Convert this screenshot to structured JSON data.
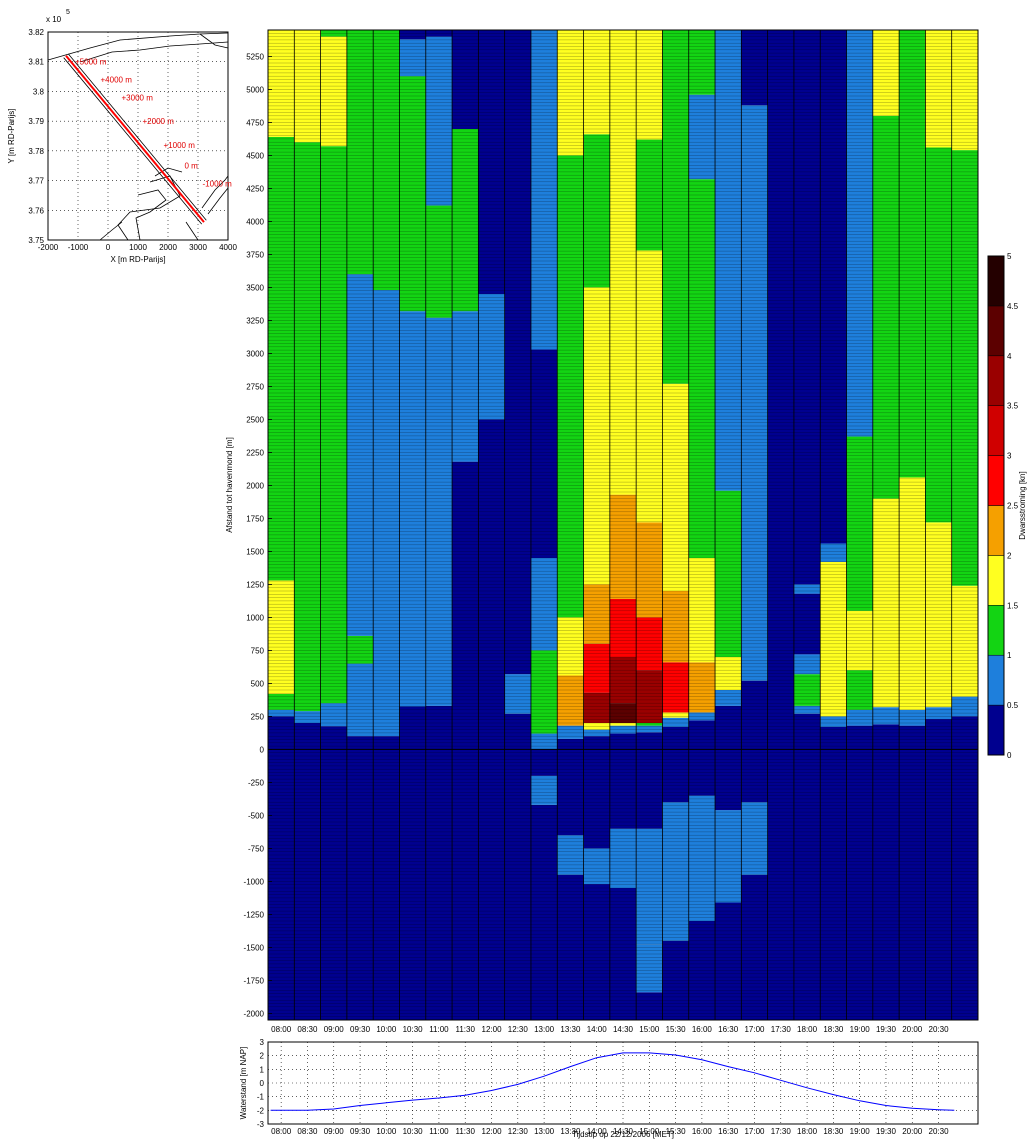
{
  "chart_data": [
    {
      "type": "line",
      "name": "location-map",
      "xlabel": "X [m RD-Parijs]",
      "ylabel": "Y [m RD-Parijs]",
      "y_exponent_label": "x 10",
      "y_exponent_power": "5",
      "xlim": [
        -2000,
        4000
      ],
      "ylim": [
        3.75,
        3.82
      ],
      "xticks": [
        "-2000",
        "-1000",
        "0",
        "1000",
        "2000",
        "3000",
        "4000"
      ],
      "yticks": [
        "3.75",
        "3.76",
        "3.77",
        "3.78",
        "3.79",
        "3.8",
        "3.81",
        "3.82"
      ],
      "grid": true,
      "axis_line": {
        "x": [
          -1400,
          3200
        ],
        "y": [
          3.812,
          3.756
        ]
      },
      "distance_labels": [
        {
          "text": "+5000 m",
          "x": -1100,
          "y": 3.809
        },
        {
          "text": "+4000 m",
          "x": -250,
          "y": 3.803
        },
        {
          "text": "+3000 m",
          "x": 450,
          "y": 3.797
        },
        {
          "text": "+2000 m",
          "x": 1150,
          "y": 3.789
        },
        {
          "text": "+1000 m",
          "x": 1850,
          "y": 3.781
        },
        {
          "text": "0 m",
          "x": 2550,
          "y": 3.774
        },
        {
          "text": "-1000 m",
          "x": 3150,
          "y": 3.768
        }
      ]
    },
    {
      "type": "heatmap",
      "name": "dwarsstroming",
      "ylabel": "Afstand tot havenmond [m]",
      "colorbar_label": "Dwarsstroming [kn]",
      "x": [
        "08:00",
        "08:30",
        "09:00",
        "09:30",
        "10:00",
        "10:30",
        "11:00",
        "11:30",
        "12:00",
        "12:30",
        "13:00",
        "13:30",
        "14:00",
        "14:30",
        "15:00",
        "15:30",
        "16:00",
        "16:30",
        "17:00",
        "17:30",
        "18:00",
        "18:30",
        "19:00",
        "19:30",
        "20:00",
        "20:30"
      ],
      "ylim": [
        -2050,
        5450
      ],
      "yticks": [
        "-2000",
        "-1750",
        "-1500",
        "-1250",
        "-1000",
        "-750",
        "-500",
        "-250",
        "0",
        "250",
        "500",
        "750",
        "1000",
        "1250",
        "1500",
        "1750",
        "2000",
        "2250",
        "2500",
        "2750",
        "3000",
        "3250",
        "3500",
        "3750",
        "4000",
        "4250",
        "4500",
        "4750",
        "5000",
        "5250"
      ],
      "bins": [
        0,
        0.5,
        1,
        1.5,
        2,
        2.5,
        3,
        3.5,
        4,
        4.5,
        5
      ],
      "colors": [
        "#00008f",
        "#1e7fdc",
        "#13d413",
        "#ffff20",
        "#f5a000",
        "#ff0000",
        "#d00000",
        "#9a0000",
        "#5c0000",
        "#240000"
      ],
      "colorbar_ticks": [
        "0",
        "0.5",
        "1",
        "1.5",
        "2",
        "2.5",
        "3",
        "3.5",
        "4",
        "4.5",
        "5"
      ],
      "segments": [
        [
          [
            -2050,
            250,
            0
          ],
          [
            250,
            300,
            1
          ],
          [
            300,
            420,
            2
          ],
          [
            420,
            1280,
            3
          ],
          [
            1280,
            4640,
            2
          ],
          [
            4640,
            5450,
            3
          ]
        ],
        [
          [
            -2050,
            200,
            0
          ],
          [
            200,
            290,
            1
          ],
          [
            290,
            1200,
            2
          ],
          [
            1200,
            4600,
            2
          ],
          [
            4600,
            5450,
            3
          ]
        ],
        [
          [
            -2050,
            175,
            0
          ],
          [
            175,
            350,
            1
          ],
          [
            350,
            1560,
            2
          ],
          [
            1560,
            4570,
            2
          ],
          [
            4570,
            5400,
            3
          ],
          [
            5400,
            5450,
            2
          ]
        ],
        [
          [
            -2050,
            100,
            0
          ],
          [
            100,
            650,
            1
          ],
          [
            650,
            860,
            2
          ],
          [
            860,
            3600,
            1
          ],
          [
            3600,
            5450,
            2
          ]
        ],
        [
          [
            -2050,
            100,
            0
          ],
          [
            100,
            3480,
            1
          ],
          [
            3480,
            5450,
            2
          ]
        ],
        [
          [
            -2050,
            325,
            0
          ],
          [
            325,
            3320,
            1
          ],
          [
            3320,
            5100,
            2
          ],
          [
            5100,
            5380,
            1
          ],
          [
            5380,
            5450,
            0
          ]
        ],
        [
          [
            -2050,
            330,
            0
          ],
          [
            330,
            3270,
            1
          ],
          [
            3270,
            4120,
            2
          ],
          [
            4120,
            5400,
            1
          ],
          [
            5400,
            5450,
            0
          ]
        ],
        [
          [
            -2050,
            2180,
            0
          ],
          [
            2180,
            3320,
            1
          ],
          [
            3320,
            4700,
            2
          ],
          [
            4700,
            5450,
            0
          ]
        ],
        [
          [
            -2050,
            2500,
            0
          ],
          [
            2500,
            3450,
            1
          ],
          [
            3450,
            5450,
            0
          ]
        ],
        [
          [
            -2050,
            270,
            0
          ],
          [
            270,
            570,
            1
          ],
          [
            570,
            5450,
            0
          ]
        ],
        [
          [
            -2050,
            -420,
            0
          ],
          [
            -420,
            -200,
            1
          ],
          [
            -200,
            0,
            0
          ],
          [
            0,
            120,
            1
          ],
          [
            120,
            750,
            2
          ],
          [
            750,
            1450,
            1
          ],
          [
            1450,
            3030,
            0
          ],
          [
            3030,
            5450,
            1
          ]
        ],
        [
          [
            -2050,
            -950,
            0
          ],
          [
            -950,
            -650,
            1
          ],
          [
            -650,
            80,
            0
          ],
          [
            80,
            180,
            1
          ],
          [
            180,
            560,
            4
          ],
          [
            560,
            1000,
            3
          ],
          [
            1000,
            4500,
            2
          ],
          [
            4500,
            5450,
            3
          ]
        ],
        [
          [
            -2050,
            -1020,
            0
          ],
          [
            -1020,
            -750,
            1
          ],
          [
            -750,
            100,
            0
          ],
          [
            100,
            150,
            1
          ],
          [
            150,
            200,
            3
          ],
          [
            200,
            430,
            7
          ],
          [
            430,
            800,
            5
          ],
          [
            800,
            1250,
            4
          ],
          [
            1250,
            3500,
            3
          ],
          [
            3500,
            4660,
            2
          ],
          [
            4660,
            5450,
            3
          ]
        ],
        [
          [
            -2050,
            -1050,
            0
          ],
          [
            -1050,
            -600,
            1
          ],
          [
            -600,
            120,
            0
          ],
          [
            120,
            180,
            1
          ],
          [
            180,
            200,
            3
          ],
          [
            200,
            350,
            8
          ],
          [
            350,
            700,
            7
          ],
          [
            700,
            1140,
            5
          ],
          [
            1140,
            1930,
            4
          ],
          [
            1930,
            4080,
            3
          ],
          [
            4080,
            5450,
            3
          ]
        ],
        [
          [
            -2050,
            -1840,
            0
          ],
          [
            -1840,
            -1480,
            1
          ],
          [
            -1480,
            -600,
            1
          ],
          [
            -600,
            130,
            0
          ],
          [
            130,
            180,
            1
          ],
          [
            180,
            200,
            2
          ],
          [
            200,
            600,
            7
          ],
          [
            600,
            1000,
            5
          ],
          [
            1000,
            1720,
            4
          ],
          [
            1720,
            3780,
            3
          ],
          [
            3780,
            4620,
            2
          ],
          [
            4620,
            5450,
            3
          ]
        ],
        [
          [
            -2050,
            -1450,
            0
          ],
          [
            -1450,
            -400,
            1
          ],
          [
            -400,
            170,
            0
          ],
          [
            170,
            240,
            1
          ],
          [
            240,
            280,
            3
          ],
          [
            280,
            660,
            5
          ],
          [
            660,
            1200,
            4
          ],
          [
            1200,
            2770,
            3
          ],
          [
            2770,
            5450,
            2
          ]
        ],
        [
          [
            -2050,
            -1300,
            0
          ],
          [
            -1300,
            -350,
            1
          ],
          [
            -350,
            220,
            0
          ],
          [
            220,
            280,
            1
          ],
          [
            280,
            660,
            4
          ],
          [
            660,
            1450,
            3
          ],
          [
            1450,
            4320,
            2
          ],
          [
            4320,
            4960,
            1
          ],
          [
            4960,
            5450,
            2
          ]
        ],
        [
          [
            -2050,
            -1160,
            0
          ],
          [
            -1160,
            -460,
            1
          ],
          [
            -460,
            330,
            0
          ],
          [
            330,
            450,
            1
          ],
          [
            450,
            700,
            3
          ],
          [
            700,
            1960,
            2
          ],
          [
            1960,
            5450,
            1
          ]
        ],
        [
          [
            -2050,
            -950,
            0
          ],
          [
            -950,
            -400,
            1
          ],
          [
            -400,
            520,
            0
          ],
          [
            520,
            750,
            1
          ],
          [
            750,
            4880,
            1
          ],
          [
            4880,
            5450,
            0
          ]
        ],
        [
          [
            -2050,
            5450,
            0
          ]
        ],
        [
          [
            -2050,
            270,
            0
          ],
          [
            270,
            330,
            1
          ],
          [
            330,
            570,
            2
          ],
          [
            570,
            720,
            1
          ],
          [
            720,
            1180,
            0
          ],
          [
            1180,
            1250,
            1
          ],
          [
            1250,
            5450,
            0
          ]
        ],
        [
          [
            -2050,
            170,
            0
          ],
          [
            170,
            250,
            1
          ],
          [
            250,
            1420,
            3
          ],
          [
            1420,
            1560,
            1
          ],
          [
            1560,
            5450,
            0
          ]
        ],
        [
          [
            -2050,
            180,
            0
          ],
          [
            180,
            300,
            1
          ],
          [
            300,
            600,
            2
          ],
          [
            600,
            1050,
            3
          ],
          [
            1050,
            2370,
            2
          ],
          [
            2370,
            5450,
            1
          ]
        ],
        [
          [
            -2050,
            190,
            0
          ],
          [
            190,
            320,
            1
          ],
          [
            320,
            1900,
            3
          ],
          [
            1900,
            4800,
            2
          ],
          [
            4800,
            5450,
            3
          ]
        ],
        [
          [
            -2050,
            180,
            0
          ],
          [
            180,
            300,
            1
          ],
          [
            300,
            2060,
            3
          ],
          [
            2060,
            5450,
            2
          ]
        ],
        [
          [
            -2050,
            230,
            0
          ],
          [
            230,
            320,
            1
          ],
          [
            320,
            1720,
            3
          ],
          [
            1720,
            4560,
            2
          ],
          [
            4560,
            5450,
            3
          ]
        ],
        [
          [
            -2050,
            250,
            0
          ],
          [
            250,
            400,
            1
          ],
          [
            400,
            1240,
            3
          ],
          [
            1240,
            4540,
            2
          ],
          [
            4540,
            5450,
            3
          ]
        ]
      ]
    },
    {
      "type": "line",
      "name": "waterstand",
      "xlabel": "Tijdstip op 22/12/2006 [MET]",
      "ylabel": "Waterstand [m NAP]",
      "ylim": [
        -3,
        3
      ],
      "yticks": [
        "-3",
        "-2",
        "-1",
        "0",
        "1",
        "2",
        "3"
      ],
      "xticks": [
        "08:00",
        "08:30",
        "09:00",
        "09:30",
        "10:00",
        "10:30",
        "11:00",
        "11:30",
        "12:00",
        "12:30",
        "13:00",
        "13:30",
        "14:00",
        "14:30",
        "15:00",
        "15:30",
        "16:00",
        "16:30",
        "17:00",
        "17:30",
        "18:00",
        "18:30",
        "19:00",
        "19:30",
        "20:00",
        "20:30"
      ],
      "grid": true,
      "color": "#0000ff",
      "x_hours": [
        7.8,
        8.0,
        8.5,
        9.0,
        9.5,
        10.0,
        10.5,
        11.0,
        11.5,
        12.0,
        12.5,
        13.0,
        13.5,
        14.0,
        14.5,
        15.0,
        15.5,
        16.0,
        16.5,
        17.0,
        17.5,
        18.0,
        18.5,
        19.0,
        19.5,
        20.0,
        20.5,
        20.8
      ],
      "values": [
        -2.0,
        -2.0,
        -2.0,
        -1.9,
        -1.65,
        -1.45,
        -1.25,
        -1.1,
        -0.9,
        -0.55,
        -0.1,
        0.5,
        1.2,
        1.85,
        2.2,
        2.2,
        2.05,
        1.7,
        1.2,
        0.75,
        0.2,
        -0.35,
        -0.85,
        -1.3,
        -1.65,
        -1.85,
        -1.95,
        -2.0
      ]
    }
  ]
}
